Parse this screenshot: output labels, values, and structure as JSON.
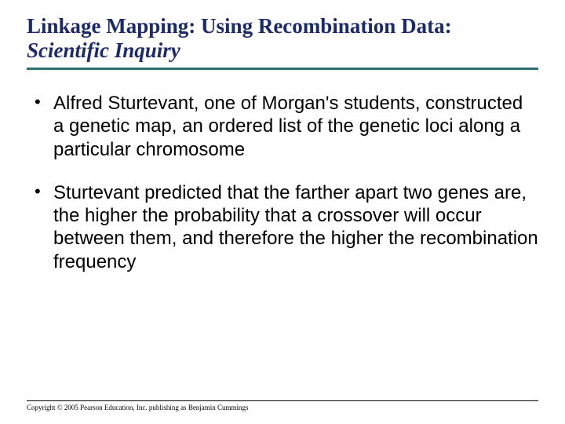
{
  "title": {
    "line1": "Linkage Mapping: Using Recombination Data:",
    "line2": "Scientific Inquiry"
  },
  "bullets": [
    "Alfred Sturtevant, one of Morgan's students, constructed a genetic map, an ordered list of the genetic loci along a particular chromosome",
    "Sturtevant predicted that the farther apart two genes are, the higher the probability that a crossover will occur between them, and therefore the higher the recombination frequency"
  ],
  "copyright": "Copyright © 2005 Pearson Education, Inc. publishing as Benjamin Cummings",
  "colors": {
    "title_text": "#1a2a6c",
    "rule": "#2f6f6f",
    "body_text": "#000000",
    "background": "#ffffff"
  },
  "typography": {
    "title_font": "Times New Roman",
    "title_size_pt": 20,
    "title_weight": "bold",
    "body_font": "Arial",
    "body_size_pt": 18,
    "copyright_font": "Times New Roman",
    "copyright_size_pt": 7
  }
}
